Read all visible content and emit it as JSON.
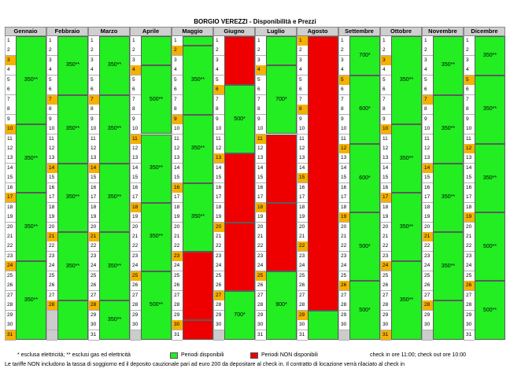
{
  "title": "BORGIO VEREZZI - Disponibilità e Prezzi",
  "colors": {
    "available": "#22ee22",
    "unavailable": "#ee0000",
    "weekend": "#f5b100",
    "na": "#cccccc",
    "header": "#cfcfcf"
  },
  "months": [
    {
      "name": "Gennaio",
      "days": 31,
      "weekend": [
        3,
        10,
        17,
        24,
        31
      ],
      "periods": [
        {
          "from": 1,
          "to": 9,
          "status": "available",
          "price": "350**"
        },
        {
          "from": 10,
          "to": 16,
          "status": "available",
          "price": "350**"
        },
        {
          "from": 17,
          "to": 23,
          "status": "available",
          "price": "350**"
        },
        {
          "from": 24,
          "to": 31,
          "status": "available",
          "price": "350**"
        }
      ]
    },
    {
      "name": "Febbraio",
      "days": 28,
      "weekend": [
        7,
        14,
        21,
        28
      ],
      "periods": [
        {
          "from": 1,
          "to": 6,
          "status": "available",
          "price": "350**"
        },
        {
          "from": 7,
          "to": 13,
          "status": "available",
          "price": "350**"
        },
        {
          "from": 14,
          "to": 20,
          "status": "available",
          "price": "350**"
        },
        {
          "from": 21,
          "to": 27,
          "status": "available",
          "price": "350**"
        },
        {
          "from": 28,
          "to": 31,
          "status": "available",
          "price": ""
        }
      ]
    },
    {
      "name": "Marzo",
      "days": 31,
      "weekend": [
        7,
        14,
        21,
        28
      ],
      "periods": [
        {
          "from": 1,
          "to": 6,
          "status": "available",
          "price": "350**"
        },
        {
          "from": 7,
          "to": 13,
          "status": "available",
          "price": "350**"
        },
        {
          "from": 14,
          "to": 20,
          "status": "available",
          "price": "350**"
        },
        {
          "from": 21,
          "to": 27,
          "status": "available",
          "price": "350**"
        },
        {
          "from": 28,
          "to": 31,
          "status": "available",
          "price": "350**"
        }
      ]
    },
    {
      "name": "Aprile",
      "days": 30,
      "weekend": [
        4,
        11,
        18,
        25
      ],
      "periods": [
        {
          "from": 1,
          "to": 3,
          "status": "available",
          "price": ""
        },
        {
          "from": 4,
          "to": 10,
          "status": "available",
          "price": "500**"
        },
        {
          "from": 11,
          "to": 17,
          "status": "available",
          "price": "350**"
        },
        {
          "from": 18,
          "to": 24,
          "status": "available",
          "price": "350**"
        },
        {
          "from": 25,
          "to": 31,
          "status": "available",
          "price": "500**"
        }
      ]
    },
    {
      "name": "Maggio",
      "days": 31,
      "weekend": [
        2,
        9,
        16,
        23,
        30
      ],
      "periods": [
        {
          "from": 1,
          "to": 1,
          "status": "available",
          "price": ""
        },
        {
          "from": 2,
          "to": 8,
          "status": "available",
          "price": "350**"
        },
        {
          "from": 9,
          "to": 15,
          "status": "available",
          "price": "350**"
        },
        {
          "from": 16,
          "to": 22,
          "status": "available",
          "price": "350**"
        },
        {
          "from": 23,
          "to": 29,
          "status": "unavailable",
          "price": ""
        },
        {
          "from": 30,
          "to": 31,
          "status": "unavailable",
          "price": ""
        }
      ]
    },
    {
      "name": "Giugno",
      "days": 30,
      "weekend": [
        6,
        13,
        20,
        27
      ],
      "periods": [
        {
          "from": 1,
          "to": 5,
          "status": "unavailable",
          "price": ""
        },
        {
          "from": 6,
          "to": 12,
          "status": "available",
          "price": "500*"
        },
        {
          "from": 13,
          "to": 19,
          "status": "unavailable",
          "price": ""
        },
        {
          "from": 20,
          "to": 26,
          "status": "unavailable",
          "price": ""
        },
        {
          "from": 27,
          "to": 31,
          "status": "available",
          "price": "700*"
        }
      ]
    },
    {
      "name": "Luglio",
      "days": 31,
      "weekend": [
        4,
        11,
        18,
        25
      ],
      "periods": [
        {
          "from": 1,
          "to": 3,
          "status": "available",
          "price": ""
        },
        {
          "from": 4,
          "to": 10,
          "status": "available",
          "price": "700*"
        },
        {
          "from": 11,
          "to": 17,
          "status": "unavailable",
          "price": ""
        },
        {
          "from": 18,
          "to": 24,
          "status": "unavailable",
          "price": ""
        },
        {
          "from": 25,
          "to": 31,
          "status": "available",
          "price": "900*"
        }
      ]
    },
    {
      "name": "Agosto",
      "days": 31,
      "weekend": [
        1,
        8,
        15,
        22,
        29
      ],
      "periods": [
        {
          "from": 1,
          "to": 28,
          "status": "unavailable",
          "price": ""
        },
        {
          "from": 29,
          "to": 31,
          "status": "available",
          "price": ""
        }
      ]
    },
    {
      "name": "Settembre",
      "days": 30,
      "weekend": [
        5,
        12,
        19,
        26
      ],
      "periods": [
        {
          "from": 1,
          "to": 4,
          "status": "available",
          "price": "700*"
        },
        {
          "from": 5,
          "to": 11,
          "status": "available",
          "price": "600*"
        },
        {
          "from": 12,
          "to": 18,
          "status": "available",
          "price": "600*"
        },
        {
          "from": 19,
          "to": 25,
          "status": "available",
          "price": "500*"
        },
        {
          "from": 26,
          "to": 31,
          "status": "available",
          "price": "500*"
        }
      ]
    },
    {
      "name": "Ottobre",
      "days": 31,
      "weekend": [
        3,
        10,
        17,
        24,
        31
      ],
      "periods": [
        {
          "from": 1,
          "to": 9,
          "status": "available",
          "price": "350**"
        },
        {
          "from": 10,
          "to": 16,
          "status": "available",
          "price": "350**"
        },
        {
          "from": 17,
          "to": 23,
          "status": "available",
          "price": "350**"
        },
        {
          "from": 24,
          "to": 31,
          "status": "available",
          "price": "350**"
        }
      ]
    },
    {
      "name": "Novembre",
      "days": 30,
      "weekend": [
        7,
        14,
        21,
        28
      ],
      "periods": [
        {
          "from": 1,
          "to": 6,
          "status": "available",
          "price": "350**"
        },
        {
          "from": 7,
          "to": 13,
          "status": "available",
          "price": "350**"
        },
        {
          "from": 14,
          "to": 20,
          "status": "available",
          "price": "350**"
        },
        {
          "from": 21,
          "to": 27,
          "status": "available",
          "price": "350**"
        },
        {
          "from": 28,
          "to": 31,
          "status": "available",
          "price": ""
        }
      ]
    },
    {
      "name": "Dicembre",
      "days": 31,
      "weekend": [
        5,
        12,
        19,
        26
      ],
      "periods": [
        {
          "from": 1,
          "to": 4,
          "status": "available",
          "price": "350**"
        },
        {
          "from": 5,
          "to": 11,
          "status": "available",
          "price": "350**"
        },
        {
          "from": 12,
          "to": 18,
          "status": "available",
          "price": "350**"
        },
        {
          "from": 19,
          "to": 25,
          "status": "available",
          "price": "500**"
        },
        {
          "from": 26,
          "to": 31,
          "status": "available",
          "price": "500**"
        }
      ]
    }
  ],
  "legend": {
    "note": "* esclusa elettricità; ** esclusi gas ed elettricità",
    "available": "Periodi disponibili",
    "unavailable": "Periodi NON disponibili",
    "checkin": "check in ore 11:00; check out ore 10:00"
  },
  "footer": "Le tariffe NON includono la tassa di soggiorno ed il deposito cauzionale pari ad euro 200 da depositare al check in. Il contratto di locazione verrà rilaciato al check in"
}
